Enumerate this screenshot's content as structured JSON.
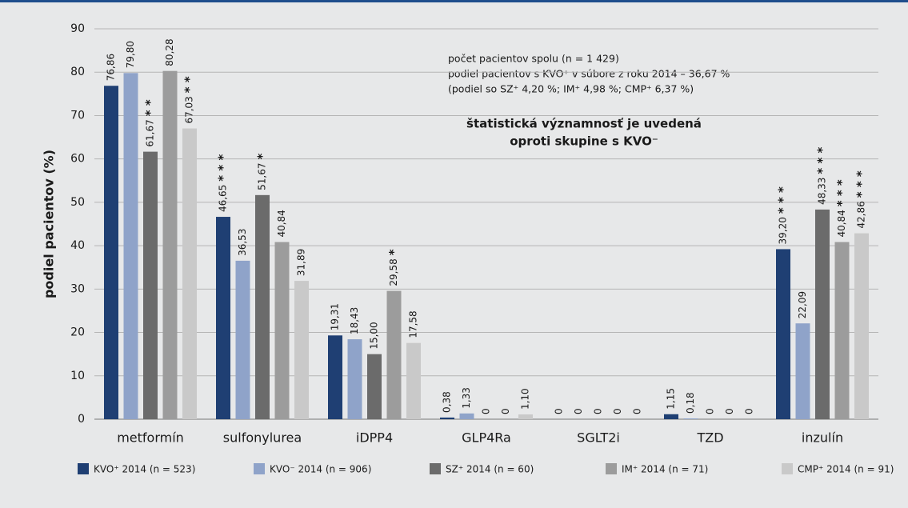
{
  "chart_data": {
    "type": "bar",
    "y_label": "podiel pacientov (%)",
    "ylim": [
      0,
      90
    ],
    "yticks": [
      0,
      10,
      20,
      30,
      40,
      50,
      60,
      70,
      80,
      90
    ],
    "grid": true,
    "legend": "bottom",
    "categories": [
      "metformín",
      "sulfonylurea",
      "iDPP4",
      "GLP4Ra",
      "SGLT2i",
      "TZD",
      "inzulín"
    ],
    "series": [
      {
        "name": "KVO⁺ 2014 (n = 523)",
        "color": "#1f3f73",
        "values": [
          76.86,
          46.65,
          19.31,
          0.38,
          0,
          1.15,
          39.2
        ],
        "value_labels": [
          "76,86",
          "46,65",
          "19,31",
          "0,38",
          "0",
          "1,15",
          "39,20"
        ],
        "significance": [
          null,
          "* * *",
          null,
          null,
          null,
          null,
          "* * *"
        ]
      },
      {
        "name": "KVO⁻ 2014 (n = 906)",
        "color": "#8fa3c9",
        "values": [
          79.8,
          36.53,
          18.43,
          1.33,
          0,
          0.18,
          22.09
        ],
        "value_labels": [
          "79,80",
          "36,53",
          "18,43",
          "1,33",
          "0",
          "0,18",
          "22,09"
        ],
        "significance": [
          null,
          null,
          null,
          null,
          null,
          null,
          null
        ]
      },
      {
        "name": "SZ⁺ 2014 (n = 60)",
        "color": "#6b6b6b",
        "values": [
          61.67,
          51.67,
          15.0,
          0,
          0,
          0,
          48.33
        ],
        "value_labels": [
          "61,67",
          "51,67",
          "15,00",
          "0",
          "0",
          "0",
          "48,33"
        ],
        "significance": [
          "* *",
          "*",
          null,
          null,
          null,
          null,
          "* * *"
        ]
      },
      {
        "name": "IM⁺ 2014 (n = 71)",
        "color": "#9c9c9c",
        "values": [
          80.28,
          40.84,
          29.58,
          0,
          0,
          0,
          40.84
        ],
        "value_labels": [
          "80,28",
          "40,84",
          "29,58",
          "0",
          "0",
          "0",
          "40,84"
        ],
        "significance": [
          null,
          null,
          "*",
          null,
          null,
          null,
          "* * *"
        ]
      },
      {
        "name": "CMP⁺ 2014 (n = 91)",
        "color": "#c9c9c9",
        "values": [
          67.03,
          31.89,
          17.58,
          1.1,
          0,
          0,
          42.86
        ],
        "value_labels": [
          "67,03",
          "31,89",
          "17,58",
          "1,10",
          "0",
          "0",
          "42,86"
        ],
        "significance": [
          "* *",
          null,
          null,
          null,
          null,
          null,
          "* * *"
        ]
      }
    ],
    "annotations": [
      "počet pacientov spolu (n = 1 429)",
      "podiel pacientov s KVO⁺ v súbore z roku 2014 – 36,67 %",
      "(podiel so SZ⁺ 4,20 %; IM⁺ 4,98 %; CMP⁺ 6,37 %)"
    ],
    "note": [
      "štatistická významnosť je uvedená",
      "oproti skupine s KVO⁻"
    ]
  }
}
